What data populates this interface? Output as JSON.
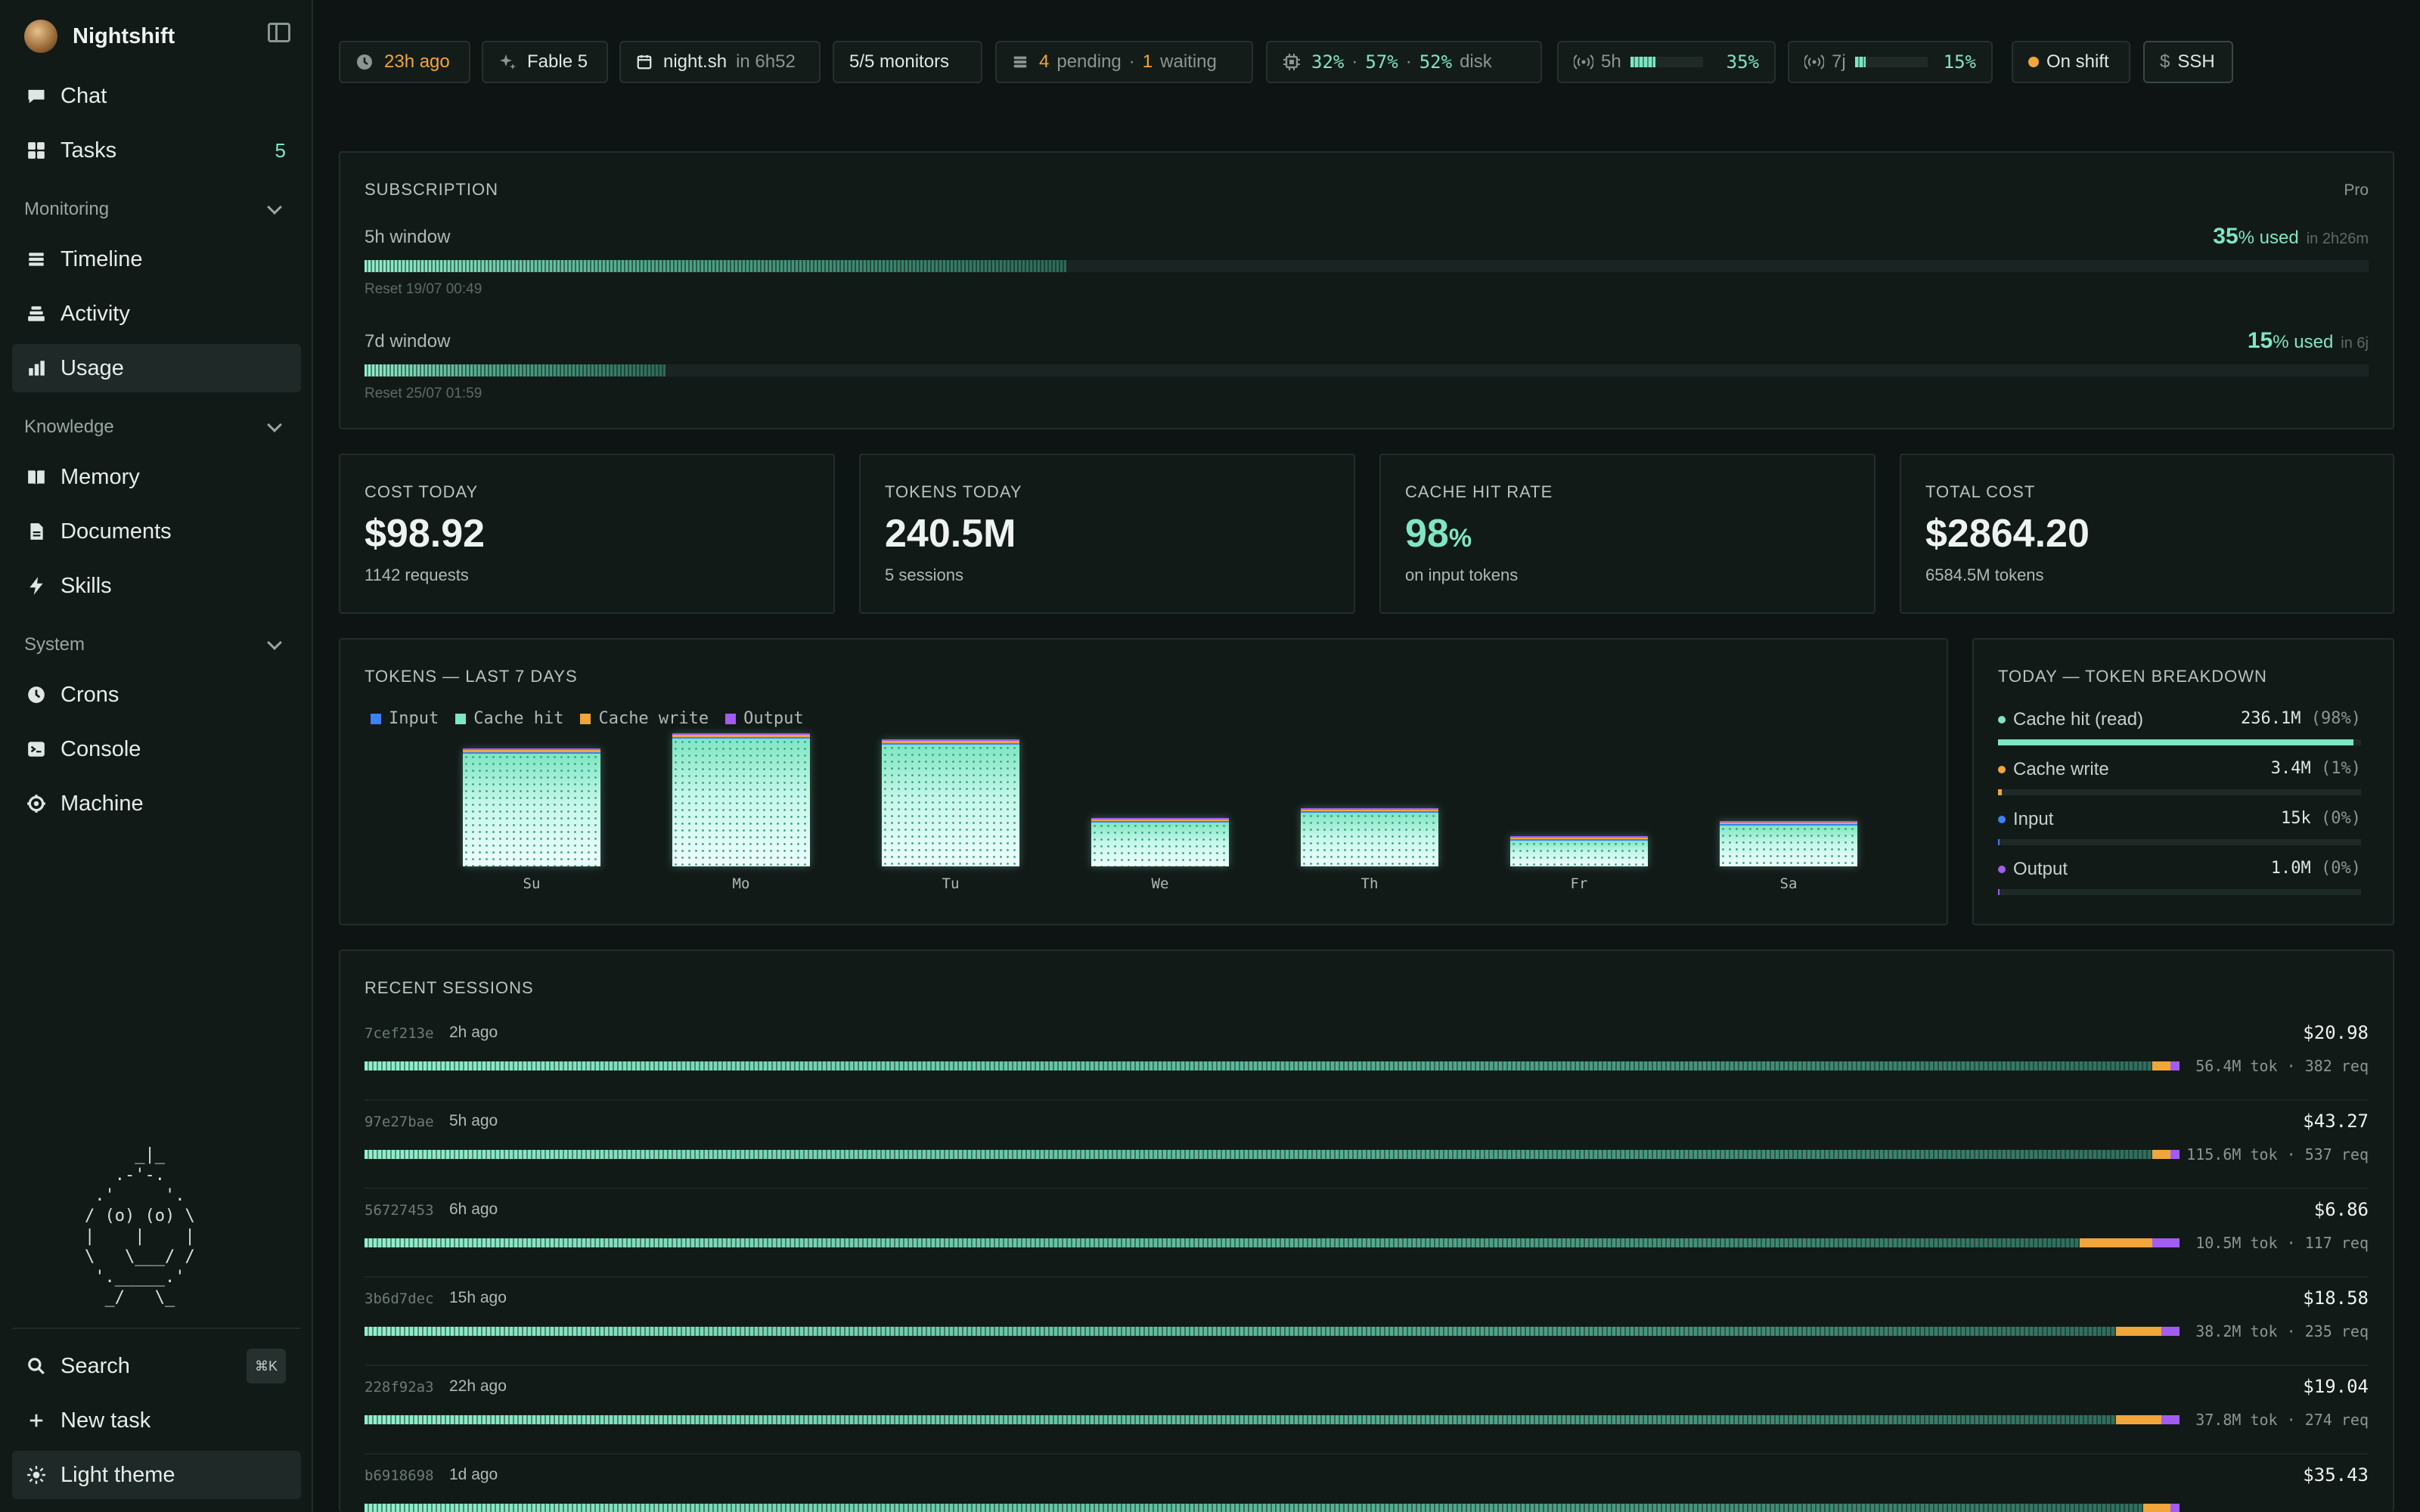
{
  "app": {
    "name": "Nightshift"
  },
  "sidebar": {
    "top_items": [
      {
        "label": "Chat",
        "icon": "chat-icon"
      },
      {
        "label": "Tasks",
        "icon": "grid-icon",
        "count": "5"
      }
    ],
    "sections": [
      {
        "title": "Monitoring",
        "items": [
          {
            "label": "Timeline",
            "icon": "list-icon"
          },
          {
            "label": "Activity",
            "icon": "stack-icon"
          },
          {
            "label": "Usage",
            "icon": "bar-chart-icon",
            "active": true
          }
        ]
      },
      {
        "title": "Knowledge",
        "items": [
          {
            "label": "Memory",
            "icon": "book-icon"
          },
          {
            "label": "Documents",
            "icon": "document-icon"
          },
          {
            "label": "Skills",
            "icon": "bolt-icon"
          }
        ]
      },
      {
        "title": "System",
        "items": [
          {
            "label": "Crons",
            "icon": "clock-icon"
          },
          {
            "label": "Console",
            "icon": "terminal-icon"
          },
          {
            "label": "Machine",
            "icon": "cpu-icon"
          }
        ]
      }
    ],
    "robot_art": "     _|_\n   .-'-.\n .'     '.\n/ (o) (o) \\\n|    |    |\n\\   \\___/ /\n '._____.'\n  _/   \\_",
    "bottom": {
      "search_label": "Search",
      "search_shortcut": "⌘K",
      "new_task_label": "New task",
      "theme_label": "Light theme"
    }
  },
  "topbar": {
    "last_seen": "23h ago",
    "model": "Fable 5",
    "host": "night.sh",
    "host_eta": "in 6h52",
    "monitors": "5/5 monitors",
    "pending_count": "4",
    "pending_label": "pending",
    "sep": "·",
    "waiting_count": "1",
    "waiting_label": "waiting",
    "cpu": "32%",
    "mem": "57%",
    "disk": "52%",
    "disk_label": "disk",
    "win5_label": "5h",
    "win5_pct": "35%",
    "win5_level": 0.35,
    "win7_label": "7j",
    "win7_pct": "15%",
    "win7_level": 0.15,
    "shift_status": "On shift",
    "ssh_label": "SSH",
    "ssh_symbol": "$"
  },
  "subscription": {
    "title": "SUBSCRIPTION",
    "plan": "Pro",
    "windows": [
      {
        "label": "5h window",
        "pct": "35",
        "pct_unit": "%",
        "used_label": "used",
        "eta": "in 2h26m",
        "reset": "Reset 19/07 00:49",
        "level": 0.35
      },
      {
        "label": "7d window",
        "pct": "15",
        "pct_unit": "%",
        "used_label": "used",
        "eta": "in 6j",
        "reset": "Reset 25/07 01:59",
        "level": 0.15
      }
    ]
  },
  "stats": [
    {
      "label": "COST TODAY",
      "value": "$98.92",
      "sub": "1142 requests"
    },
    {
      "label": "TOKENS TODAY",
      "value": "240.5M",
      "sub": "5 sessions"
    },
    {
      "label": "CACHE HIT RATE",
      "value": "98",
      "unit": "%",
      "sub": "on input tokens"
    },
    {
      "label": "TOTAL COST",
      "value": "$2864.20",
      "sub": "6584.5M tokens"
    }
  ],
  "chart_data": {
    "type": "bar",
    "title": "TOKENS — LAST 7 DAYS",
    "categories": [
      "Su",
      "Mo",
      "Tu",
      "We",
      "Th",
      "Fr",
      "Sa"
    ],
    "series": [
      {
        "name": "Input",
        "color": "#3b82f6",
        "values": [
          0.01,
          0.01,
          0.01,
          0.01,
          0.01,
          0.01,
          0.01
        ]
      },
      {
        "name": "Cache hit",
        "color": "#7fe6c2",
        "values": [
          150,
          170,
          162,
          62,
          74,
          38,
          58
        ]
      },
      {
        "name": "Cache write",
        "color": "#f0a63a",
        "values": [
          3,
          3,
          3,
          1.5,
          1.5,
          1,
          1.5
        ]
      },
      {
        "name": "Output",
        "color": "#a35cf0",
        "values": [
          1.5,
          1,
          1,
          0.6,
          0.6,
          0.4,
          0.6
        ]
      }
    ],
    "ylim": [
      0,
      175
    ],
    "legend": "top-left"
  },
  "breakdown": {
    "title": "TODAY — TOKEN BREAKDOWN",
    "rows": [
      {
        "name": "Cache hit (read)",
        "value": "236.1M",
        "pct": "(98%)",
        "color": "#7fe6c2",
        "level": 0.98
      },
      {
        "name": "Cache write",
        "value": "3.4M",
        "pct": "(1%)",
        "color": "#f0a63a",
        "level": 0.01
      },
      {
        "name": "Input",
        "value": "15k",
        "pct": "(0%)",
        "color": "#3b82f6",
        "level": 0.0
      },
      {
        "name": "Output",
        "value": "1.0M",
        "pct": "(0%)",
        "color": "#a35cf0",
        "level": 0.004
      }
    ]
  },
  "sessions": {
    "title": "RECENT SESSIONS",
    "rows": [
      {
        "id": "7cef213e",
        "when": "2h ago",
        "cost": "$20.98",
        "meta": "56.4M tok · 382 req",
        "mix": [
          0.985,
          0.01,
          0.005
        ]
      },
      {
        "id": "97e27bae",
        "when": "5h ago",
        "cost": "$43.27",
        "meta": "115.6M tok · 537 req",
        "mix": [
          0.985,
          0.01,
          0.005
        ]
      },
      {
        "id": "56727453",
        "when": "6h ago",
        "cost": "$6.86",
        "meta": "10.5M tok · 117 req",
        "mix": [
          0.945,
          0.04,
          0.015
        ]
      },
      {
        "id": "3b6d7dec",
        "when": "15h ago",
        "cost": "$18.58",
        "meta": "38.2M tok · 235 req",
        "mix": [
          0.965,
          0.025,
          0.01
        ]
      },
      {
        "id": "228f92a3",
        "when": "22h ago",
        "cost": "$19.04",
        "meta": "37.8M tok · 274 req",
        "mix": [
          0.965,
          0.025,
          0.01
        ]
      },
      {
        "id": "b6918698",
        "when": "1d ago",
        "cost": "$35.43",
        "meta": "",
        "mix": [
          0.98,
          0.015,
          0.005
        ]
      }
    ]
  },
  "colors": {
    "accent": "#7fe6c2",
    "amber": "#f0a63a",
    "blue": "#3b82f6",
    "purple": "#a35cf0"
  }
}
